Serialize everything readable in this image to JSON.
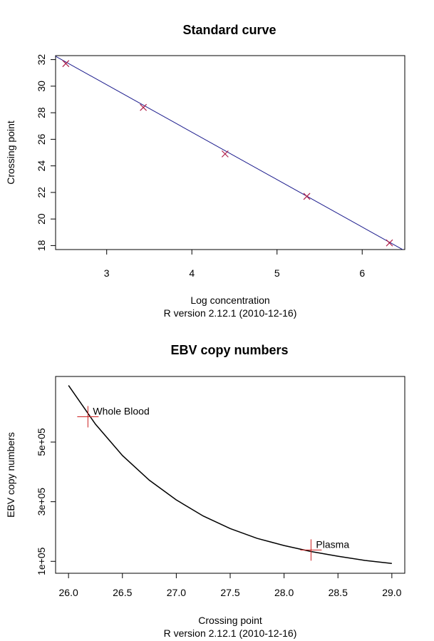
{
  "chart_data": [
    {
      "type": "scatter",
      "title": "Standard curve",
      "xlabel": "Log concentration",
      "ylabel": "Crossing point",
      "subtitle": "R version 2.12.1 (2010-12-16)",
      "xlim": [
        2.4,
        6.5
      ],
      "ylim": [
        17.7,
        32.3
      ],
      "xticks": [
        3,
        4,
        5,
        6
      ],
      "yticks": [
        18,
        20,
        22,
        24,
        26,
        28,
        30,
        32
      ],
      "grid": false,
      "series": [
        {
          "marker": "x",
          "color": "#b0204a",
          "x": [
            2.52,
            3.43,
            4.39,
            5.35,
            6.32
          ],
          "y": [
            31.7,
            28.4,
            24.9,
            21.7,
            18.2
          ]
        }
      ],
      "fit_line": {
        "color": "#1a1a8c",
        "x": [
          2.4,
          6.5
        ],
        "y": [
          32.25,
          17.61
        ]
      }
    },
    {
      "type": "line",
      "title": "EBV copy numbers",
      "xlabel": "Crossing point",
      "ylabel": "EBV copy numbers",
      "subtitle": "R version 2.12.1 (2010-12-16)",
      "xlim": [
        25.88,
        29.12
      ],
      "ylim": [
        60000,
        720000
      ],
      "xticks": [
        26.0,
        26.5,
        27.0,
        27.5,
        28.0,
        28.5,
        29.0
      ],
      "xtick_labels": [
        "26.0",
        "26.5",
        "27.0",
        "27.5",
        "28.0",
        "28.5",
        "29.0"
      ],
      "yticks": [
        100000,
        300000,
        500000
      ],
      "ytick_labels": [
        "1e+05",
        "3e+05",
        "5e+05"
      ],
      "grid": false,
      "curve": {
        "color": "#000000",
        "x": [
          26.0,
          26.25,
          26.5,
          26.75,
          27.0,
          27.25,
          27.5,
          27.75,
          28.0,
          28.25,
          28.5,
          28.75,
          29.0
        ],
        "y": [
          690000,
          560000,
          455000,
          372000,
          306000,
          252000,
          210000,
          177000,
          153000,
          133000,
          117000,
          103000,
          93000
        ]
      },
      "points": [
        {
          "label": "Whole Blood",
          "x": 26.18,
          "y": 585000,
          "color": "#cc2020"
        },
        {
          "label": "Plasma",
          "x": 28.25,
          "y": 138000,
          "color": "#cc2020"
        }
      ]
    }
  ]
}
